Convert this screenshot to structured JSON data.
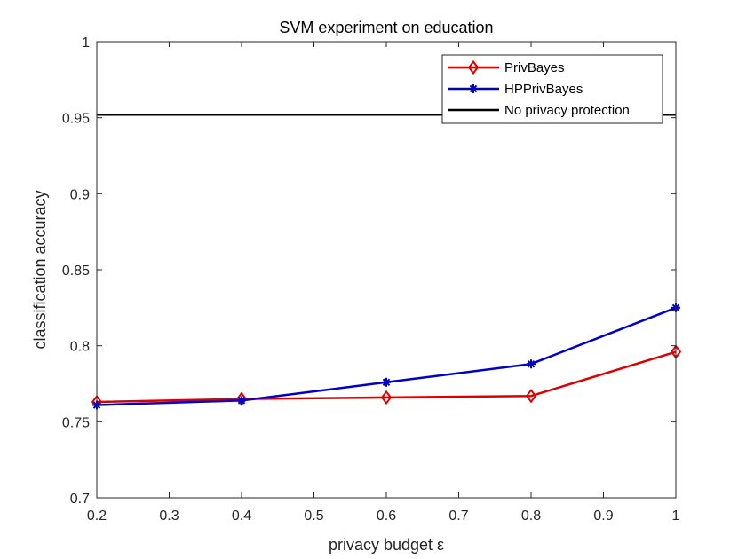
{
  "chart_data": {
    "type": "line",
    "title": "SVM experiment on education",
    "xlabel": "privacy budget ε",
    "ylabel": "classification accuracy",
    "xlim": [
      0.2,
      1.0
    ],
    "ylim": [
      0.7,
      1.0
    ],
    "xticks": [
      "0.2",
      "0.3",
      "0.4",
      "0.5",
      "0.6",
      "0.7",
      "0.8",
      "0.9",
      "1"
    ],
    "yticks": [
      "0.7",
      "0.75",
      "0.8",
      "0.85",
      "0.9",
      "0.95",
      "1"
    ],
    "grid": false,
    "legend_position": "top-right",
    "series": [
      {
        "name": "PrivBayes",
        "color": "#dd0000",
        "marker": "diamond",
        "x": [
          0.2,
          0.4,
          0.6,
          0.8,
          1.0
        ],
        "y": [
          0.763,
          0.765,
          0.766,
          0.767,
          0.796
        ]
      },
      {
        "name": "HPPrivBayes",
        "color": "#0000cc",
        "marker": "asterisk",
        "x": [
          0.2,
          0.4,
          0.6,
          0.8,
          1.0
        ],
        "y": [
          0.761,
          0.764,
          0.776,
          0.788,
          0.825
        ]
      },
      {
        "name": "No privacy protection",
        "color": "#000000",
        "marker": "none",
        "x": [
          0.2,
          1.0
        ],
        "y": [
          0.952,
          0.952
        ]
      }
    ]
  }
}
